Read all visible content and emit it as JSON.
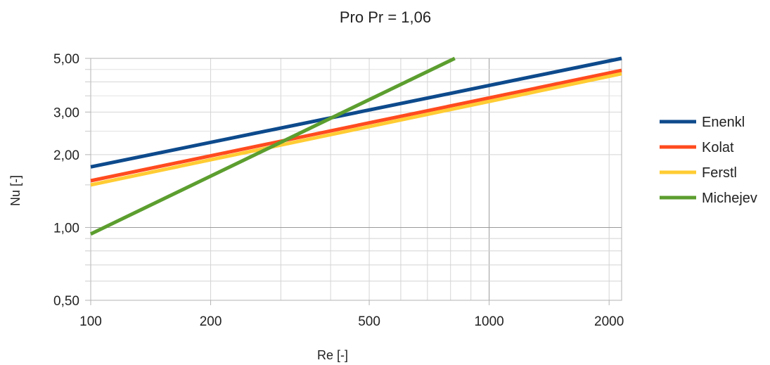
{
  "chart_data": {
    "type": "line",
    "title": "Pro Pr = 1,06",
    "xlabel": "Re [-]",
    "ylabel": "Nu [-]",
    "xscale": "log",
    "yscale": "log",
    "xlim": [
      100,
      2150
    ],
    "ylim": [
      0.5,
      5.0
    ],
    "grid": true,
    "legend_position": "right",
    "x_ticks": [
      {
        "value": 100,
        "label": "100"
      },
      {
        "value": 200,
        "label": "200"
      },
      {
        "value": 500,
        "label": "500"
      },
      {
        "value": 1000,
        "label": "1000"
      },
      {
        "value": 2000,
        "label": "2000"
      }
    ],
    "y_ticks": [
      {
        "value": 0.5,
        "label": "0,50"
      },
      {
        "value": 1.0,
        "label": "1,00"
      },
      {
        "value": 2.0,
        "label": "2,00"
      },
      {
        "value": 3.0,
        "label": "3,00"
      },
      {
        "value": 5.0,
        "label": "5,00"
      }
    ],
    "series": [
      {
        "name": "Enenkl",
        "color": "#0d4a8c",
        "x": [
          100,
          2150
        ],
        "y": [
          1.78,
          5.0
        ]
      },
      {
        "name": "Kolat",
        "color": "#ff4b1f",
        "x": [
          100,
          2150
        ],
        "y": [
          1.56,
          4.46
        ]
      },
      {
        "name": "Ferstl",
        "color": "#ffcc33",
        "x": [
          100,
          2150
        ],
        "y": [
          1.5,
          4.32
        ]
      },
      {
        "name": "Michejev",
        "color": "#5c9e2f",
        "x": [
          100,
          820
        ],
        "y": [
          0.94,
          5.0
        ]
      }
    ]
  }
}
